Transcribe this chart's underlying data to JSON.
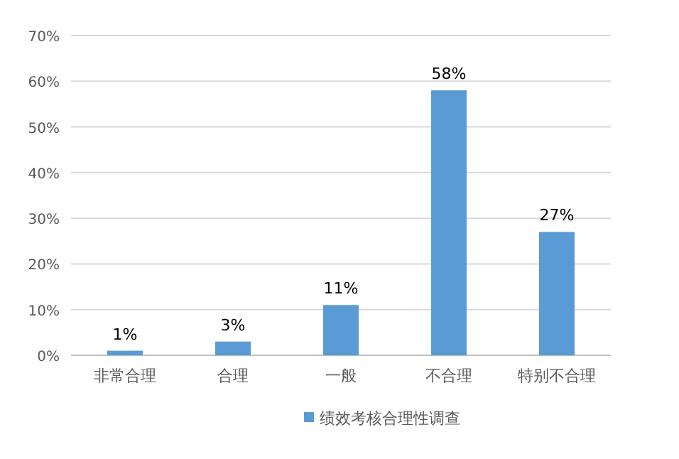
{
  "chart_data": {
    "type": "bar",
    "categories": [
      "非常合理",
      "合理",
      "一般",
      "不合理",
      "特别不合理"
    ],
    "series": [
      {
        "name": "绩效考核合理性调查",
        "color": "#5b9bd5",
        "values": [
          1,
          3,
          11,
          58,
          27
        ],
        "value_labels": [
          "1%",
          "3%",
          "11%",
          "58%",
          "27%"
        ]
      }
    ],
    "ylim": [
      0,
      70
    ],
    "yticks": [
      {
        "value": 0,
        "label": "0%"
      },
      {
        "value": 10,
        "label": "10%"
      },
      {
        "value": 20,
        "label": "20%"
      },
      {
        "value": 30,
        "label": "30%"
      },
      {
        "value": 40,
        "label": "40%"
      },
      {
        "value": 50,
        "label": "50%"
      },
      {
        "value": 60,
        "label": "60%"
      },
      {
        "value": 70,
        "label": "70%"
      }
    ],
    "grid": "y",
    "legend": "bottom"
  }
}
